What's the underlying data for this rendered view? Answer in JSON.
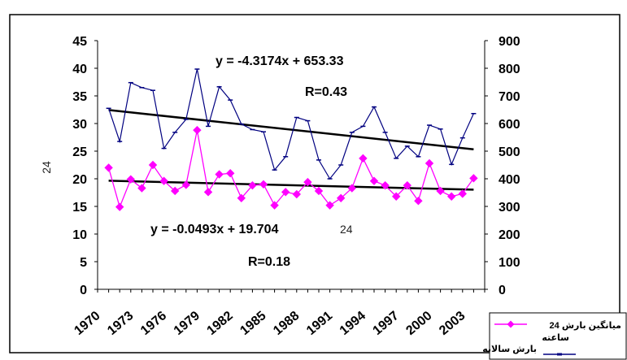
{
  "chart_data": {
    "type": "line",
    "x_axis": {
      "min": 1970,
      "max": 2005,
      "tick_labels": [
        "1970",
        "1973",
        "1976",
        "1979",
        "1982",
        "1985",
        "1988",
        "1991",
        "1994",
        "1997",
        "2000",
        "2003"
      ]
    },
    "y_left": {
      "min": 0,
      "max": 45,
      "tick_labels": [
        "0",
        "5",
        "10",
        "15",
        "20",
        "25",
        "30",
        "35",
        "40",
        "45"
      ]
    },
    "y_right": {
      "min": 0,
      "max": 900,
      "tick_labels": [
        "0",
        "100",
        "200",
        "300",
        "400",
        "500",
        "600",
        "700",
        "800",
        "900"
      ]
    },
    "side_label": "24",
    "center_label": "24",
    "legend_position": "bottom-right",
    "series": [
      {
        "name": "میانگین بارش 24 ساعته",
        "axis": "left",
        "color": "#ff00ff",
        "marker": "diamond",
        "x": [
          1971,
          1972,
          1973,
          1974,
          1975,
          1976,
          1977,
          1978,
          1979,
          1980,
          1981,
          1982,
          1983,
          1984,
          1985,
          1986,
          1987,
          1988,
          1989,
          1990,
          1991,
          1992,
          1993,
          1994,
          1995,
          1996,
          1997,
          1998,
          1999,
          2000,
          2001,
          2002,
          2003,
          2004
        ],
        "values": [
          22.0,
          14.9,
          19.9,
          18.3,
          22.5,
          19.6,
          17.8,
          18.9,
          28.8,
          17.6,
          20.8,
          21.0,
          16.5,
          18.8,
          19.0,
          15.2,
          17.6,
          17.2,
          19.4,
          17.8,
          15.2,
          16.5,
          18.3,
          23.7,
          19.6,
          18.8,
          16.8,
          18.8,
          16.0,
          22.8,
          17.8,
          16.8,
          17.3,
          20.1
        ]
      },
      {
        "name": "بارش سالانه",
        "axis": "right",
        "color": "#000080",
        "marker": "dash",
        "x": [
          1971,
          1972,
          1973,
          1974,
          1975,
          1976,
          1977,
          1978,
          1979,
          1980,
          1981,
          1982,
          1983,
          1984,
          1985,
          1986,
          1987,
          1988,
          1989,
          1990,
          1991,
          1992,
          1993,
          1994,
          1995,
          1996,
          1997,
          1998,
          1999,
          2000,
          2001,
          2002,
          2003,
          2004
        ],
        "values": [
          655,
          535,
          748,
          730,
          720,
          510,
          568,
          615,
          797,
          590,
          733,
          685,
          598,
          578,
          570,
          432,
          480,
          622,
          610,
          468,
          400,
          450,
          568,
          590,
          660,
          568,
          474,
          518,
          480,
          594,
          580,
          452,
          548,
          636
        ]
      }
    ],
    "trendlines": [
      {
        "series_axis": "right",
        "slope": -4.3174,
        "intercept": 653.33,
        "equation": "y = -4.3174x + 653.33",
        "r_label": "R=0.43"
      },
      {
        "series_axis": "left",
        "slope": -0.0493,
        "intercept": 19.704,
        "equation": "y = -0.0493x + 19.704",
        "r_label": "R=0.18"
      }
    ]
  }
}
